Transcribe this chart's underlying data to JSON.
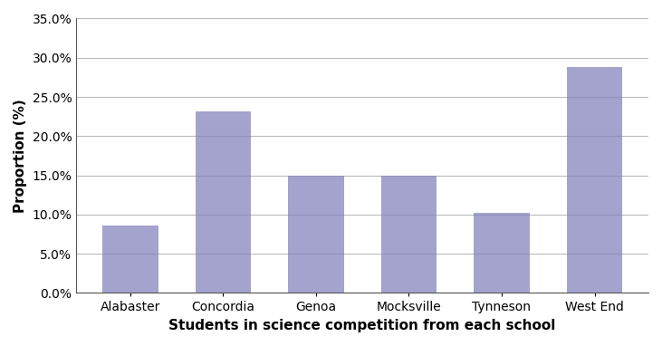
{
  "categories": [
    "Alabaster",
    "Concordia",
    "Genoa",
    "Mocksville",
    "Tynneson",
    "West End"
  ],
  "values": [
    0.086,
    0.232,
    0.15,
    0.15,
    0.102,
    0.288
  ],
  "bar_color": "#8080bb",
  "bar_alpha": 0.72,
  "xlabel": "Students in science competition from each school",
  "ylabel": "Proportion (%)",
  "ylim": [
    0,
    0.35
  ],
  "yticks": [
    0.0,
    0.05,
    0.1,
    0.15,
    0.2,
    0.25,
    0.3,
    0.35
  ],
  "xlabel_fontsize": 11,
  "ylabel_fontsize": 11,
  "tick_fontsize": 10,
  "xlabel_fontweight": "bold",
  "ylabel_fontweight": "bold",
  "grid_color": "#bbbbbb",
  "grid_linewidth": 0.8,
  "background_color": "#ffffff"
}
